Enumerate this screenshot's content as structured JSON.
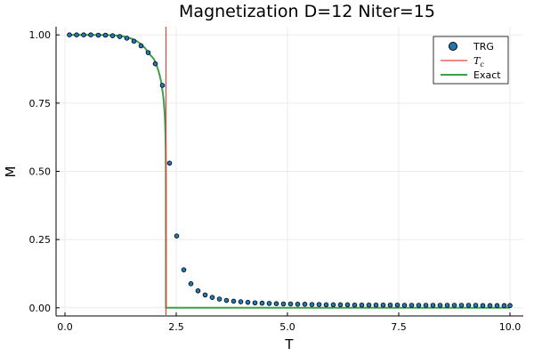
{
  "chart_data": {
    "type": "scatter",
    "title": "Magnetization D=12 Niter=15",
    "xlabel": "T",
    "ylabel": "M",
    "xlim": [
      -0.2,
      10.3
    ],
    "ylim": [
      -0.03,
      1.03
    ],
    "xticks": [
      0.0,
      2.5,
      5.0,
      7.5,
      10.0
    ],
    "xtick_labels": [
      "0.0",
      "2.5",
      "5.0",
      "7.5",
      "10.0"
    ],
    "yticks": [
      0.0,
      0.25,
      0.5,
      0.75,
      1.0
    ],
    "ytick_labels": [
      "0.00",
      "0.25",
      "0.50",
      "0.75",
      "1.00"
    ],
    "grid": true,
    "legend_position": "top-right",
    "colors": {
      "trg": "#1f77b4",
      "tc": "#e8413b",
      "exact": "#3aa049",
      "axis": "#000000",
      "grid": "#ebebeb"
    },
    "legend": [
      {
        "label": "TRG",
        "kind": "marker",
        "color": "#1f77b4"
      },
      {
        "label": "T",
        "subscript": "c",
        "kind": "line",
        "color": "#e8413b",
        "math": true
      },
      {
        "label": "Exact",
        "kind": "line",
        "color": "#3aa049"
      }
    ],
    "trg_points": [
      [
        0.1,
        1.0
      ],
      [
        0.26,
        1.0
      ],
      [
        0.42,
        1.0
      ],
      [
        0.58,
        1.0
      ],
      [
        0.75,
        0.999
      ],
      [
        0.91,
        0.999
      ],
      [
        1.07,
        0.997
      ],
      [
        1.23,
        0.994
      ],
      [
        1.39,
        0.988
      ],
      [
        1.55,
        0.977
      ],
      [
        1.71,
        0.96
      ],
      [
        1.87,
        0.935
      ],
      [
        2.03,
        0.894
      ],
      [
        2.19,
        0.815
      ],
      [
        2.35,
        0.53
      ],
      [
        2.51,
        0.263
      ],
      [
        2.67,
        0.139
      ],
      [
        2.83,
        0.088
      ],
      [
        2.99,
        0.062
      ],
      [
        3.15,
        0.047
      ],
      [
        3.31,
        0.038
      ],
      [
        3.47,
        0.032
      ],
      [
        3.63,
        0.027
      ],
      [
        3.79,
        0.024
      ],
      [
        3.95,
        0.022
      ],
      [
        4.11,
        0.02
      ],
      [
        4.27,
        0.018
      ],
      [
        4.43,
        0.017
      ],
      [
        4.59,
        0.016
      ],
      [
        4.75,
        0.015
      ],
      [
        4.91,
        0.014
      ],
      [
        5.07,
        0.014
      ],
      [
        5.23,
        0.013
      ],
      [
        5.39,
        0.013
      ],
      [
        5.55,
        0.012
      ],
      [
        5.71,
        0.012
      ],
      [
        5.87,
        0.011
      ],
      [
        6.03,
        0.011
      ],
      [
        6.19,
        0.011
      ],
      [
        6.35,
        0.011
      ],
      [
        6.51,
        0.01
      ],
      [
        6.67,
        0.01
      ],
      [
        6.83,
        0.01
      ],
      [
        6.99,
        0.01
      ],
      [
        7.15,
        0.01
      ],
      [
        7.31,
        0.01
      ],
      [
        7.47,
        0.01
      ],
      [
        7.63,
        0.009
      ],
      [
        7.79,
        0.009
      ],
      [
        7.95,
        0.009
      ],
      [
        8.11,
        0.009
      ],
      [
        8.27,
        0.009
      ],
      [
        8.43,
        0.009
      ],
      [
        8.59,
        0.009
      ],
      [
        8.75,
        0.009
      ],
      [
        8.91,
        0.009
      ],
      [
        9.07,
        0.009
      ],
      [
        9.23,
        0.009
      ],
      [
        9.39,
        0.008
      ],
      [
        9.55,
        0.008
      ],
      [
        9.71,
        0.008
      ],
      [
        9.87,
        0.008
      ],
      [
        10.0,
        0.008
      ]
    ],
    "tc": 2.269,
    "exact_curve": [
      [
        0.1,
        1.0
      ],
      [
        0.3,
        1.0
      ],
      [
        0.5,
        1.0
      ],
      [
        0.7,
        0.9999
      ],
      [
        0.9,
        0.9996
      ],
      [
        1.1,
        0.9985
      ],
      [
        1.3,
        0.9949
      ],
      [
        1.5,
        0.986
      ],
      [
        1.6,
        0.9783
      ],
      [
        1.7,
        0.9673
      ],
      [
        1.8,
        0.9518
      ],
      [
        1.9,
        0.9295
      ],
      [
        2.0,
        0.9113
      ],
      [
        2.05,
        0.8924
      ],
      [
        2.1,
        0.8689
      ],
      [
        2.15,
        0.8374
      ],
      [
        2.2,
        0.7857
      ],
      [
        2.22,
        0.7576
      ],
      [
        2.24,
        0.7117
      ],
      [
        2.25,
        0.6786
      ],
      [
        2.26,
        0.6224
      ],
      [
        2.265,
        0.5715
      ],
      [
        2.268,
        0.4788
      ],
      [
        2.2691,
        0.25
      ],
      [
        2.2692,
        0.0
      ],
      [
        10.0,
        0.0
      ]
    ]
  }
}
